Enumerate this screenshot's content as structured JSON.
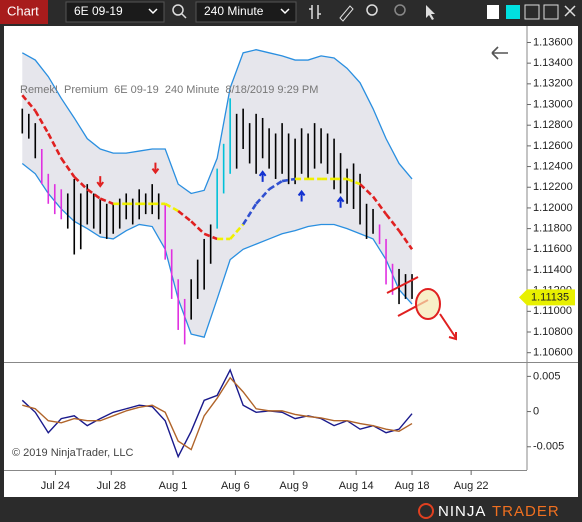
{
  "toolbar": {
    "title": "Chart",
    "instrument": "6E 09-19",
    "interval": "240 Minute"
  },
  "footer": {
    "copyright": "© 2019 NinjaTrader, LLC",
    "logo_1": "NINJA",
    "logo_2": "TRADER"
  },
  "chart_data": [
    {
      "type": "ohlc",
      "label": "Remek!  Premium  6E 09-19  240 Minute  8/18/2019 9:29 PM",
      "high": [
        1.1296,
        1.1291,
        1.1282,
        1.1257,
        1.1233,
        1.1223,
        1.1218,
        1.1214,
        1.1228,
        1.1214,
        1.1223,
        1.1214,
        1.1209,
        1.1204,
        1.1204,
        1.1209,
        1.1214,
        1.1209,
        1.1218,
        1.1214,
        1.1223,
        1.1214,
        1.1204,
        1.116,
        1.1131,
        1.1112,
        1.1131,
        1.115,
        1.117,
        1.1184,
        1.1238,
        1.1262,
        1.1306,
        1.1291,
        1.1296,
        1.1282,
        1.1291,
        1.1287,
        1.1277,
        1.1272,
        1.1282,
        1.1272,
        1.1267,
        1.1277,
        1.1272,
        1.1282,
        1.1277,
        1.1272,
        1.1267,
        1.1253,
        1.1238,
        1.1243,
        1.1233,
        1.1204,
        1.1199,
        1.1184,
        1.117,
        1.1146,
        1.1141,
        1.1136,
        1.1136
      ],
      "low": [
        1.1272,
        1.1267,
        1.1248,
        1.1223,
        1.1204,
        1.1194,
        1.1189,
        1.118,
        1.1155,
        1.116,
        1.1184,
        1.118,
        1.1175,
        1.117,
        1.1175,
        1.118,
        1.1189,
        1.1184,
        1.1189,
        1.1194,
        1.1194,
        1.1189,
        1.115,
        1.1112,
        1.1082,
        1.1068,
        1.1092,
        1.1112,
        1.1121,
        1.1146,
        1.118,
        1.1214,
        1.1233,
        1.1238,
        1.1257,
        1.1243,
        1.1233,
        1.1248,
        1.1238,
        1.1228,
        1.1233,
        1.1223,
        1.1223,
        1.1233,
        1.1228,
        1.1238,
        1.1243,
        1.1233,
        1.1218,
        1.1214,
        1.1204,
        1.1199,
        1.1184,
        1.117,
        1.1175,
        1.1165,
        1.1126,
        1.1116,
        1.1107,
        1.1112,
        1.1112
      ],
      "bar_colors": [
        "#000000",
        "#000000",
        "#000000",
        "#e030e0",
        "#e030e0",
        "#e030e0",
        "#e030e0",
        "#000000",
        "#000000",
        "#000000",
        "#000000",
        "#000000",
        "#000000",
        "#000000",
        "#000000",
        "#000000",
        "#000000",
        "#000000",
        "#000000",
        "#000000",
        "#000000",
        "#000000",
        "#e030e0",
        "#e030e0",
        "#e030e0",
        "#e030e0",
        "#000000",
        "#000000",
        "#000000",
        "#000000",
        "#00c0d8",
        "#00c0d8",
        "#00c0d8",
        "#000000",
        "#000000",
        "#000000",
        "#000000",
        "#000000",
        "#000000",
        "#000000",
        "#000000",
        "#000000",
        "#000000",
        "#000000",
        "#000000",
        "#000000",
        "#000000",
        "#000000",
        "#000000",
        "#000000",
        "#000000",
        "#000000",
        "#000000",
        "#000000",
        "#000000",
        "#e030e0",
        "#e030e0",
        "#e030e0",
        "#000000",
        "#000000",
        "#000000"
      ],
      "overlays": {
        "x": [
          0,
          2,
          4,
          6,
          8,
          10,
          12,
          14,
          16,
          18,
          20,
          22,
          24,
          26,
          28,
          30,
          32,
          34,
          36,
          38,
          40,
          42,
          44,
          46,
          48,
          50,
          52,
          54,
          56,
          58,
          60
        ],
        "upper": [
          1.135,
          1.1343,
          1.1327,
          1.1306,
          1.1287,
          1.1267,
          1.1257,
          1.1253,
          1.1253,
          1.1255,
          1.1257,
          1.1257,
          1.1223,
          1.1214,
          1.1217,
          1.1248,
          1.1316,
          1.135,
          1.1353,
          1.135,
          1.1347,
          1.1343,
          1.1343,
          1.1347,
          1.1345,
          1.1335,
          1.1321,
          1.1296,
          1.1267,
          1.1243,
          1.1228
        ],
        "lower": [
          1.1243,
          1.1233,
          1.1214,
          1.1199,
          1.1187,
          1.118,
          1.1172,
          1.117,
          1.1178,
          1.1184,
          1.1182,
          1.116,
          1.1112,
          1.1078,
          1.1075,
          1.1112,
          1.115,
          1.116,
          1.1165,
          1.117,
          1.1175,
          1.1178,
          1.1182,
          1.1184,
          1.1184,
          1.118,
          1.1175,
          1.117,
          1.115,
          1.1121,
          1.1107
        ],
        "band_color": "#2a8fe0",
        "band_fill": "#e6e6ec",
        "trend": [
          1.1309,
          1.1294,
          1.1272,
          1.1248,
          1.123,
          1.1218,
          1.1209,
          1.1204,
          1.1204,
          1.1204,
          1.1204,
          1.1204,
          1.1197,
          1.1187,
          1.1175,
          1.117,
          1.117,
          1.1184,
          1.1204,
          1.1218,
          1.1226,
          1.1228,
          1.1228,
          1.1228,
          1.1228,
          1.1228,
          1.1223,
          1.1211,
          1.1194,
          1.1178,
          1.116
        ],
        "trend_colors": [
          "#e02020",
          "#e02020",
          "#e02020",
          "#e02020",
          "#e02020",
          "#e02020",
          "#e02020",
          "#f0f000",
          "#f0f000",
          "#f0f000",
          "#f0f000",
          "#f0f000",
          "#e02020",
          "#e02020",
          "#e02020",
          "#f0f000",
          "#f0f000",
          "#3050d0",
          "#3050d0",
          "#3050d0",
          "#3050d0",
          "#f0f000",
          "#f0f000",
          "#f0f000",
          "#f0f000",
          "#f0f000",
          "#e02020",
          "#e02020",
          "#e02020",
          "#e02020",
          "#e02020"
        ]
      },
      "signals_down": {
        "x": [
          12,
          20.5
        ],
        "values": [
          1.1225,
          1.1238
        ],
        "color": "#e02020"
      },
      "signals_up": {
        "x": [
          37,
          43,
          49
        ],
        "values": [
          1.1231,
          1.1212,
          1.1206
        ],
        "color": "#1030d0"
      },
      "last_price": 1.11135,
      "xlim": [
        -2.2,
        77.7
      ],
      "ylim": [
        1.1051,
        1.1374
      ],
      "yticks": [
        {
          "value": 1.106,
          "label": "1.10600"
        },
        {
          "value": 1.108,
          "label": "1.10800"
        },
        {
          "value": 1.11,
          "label": "1.11000"
        },
        {
          "value": 1.112,
          "label": "1.11200"
        },
        {
          "value": 1.114,
          "label": "1.11400"
        },
        {
          "value": 1.116,
          "label": "1.11600"
        },
        {
          "value": 1.118,
          "label": "1.11800"
        },
        {
          "value": 1.12,
          "label": "1.12000"
        },
        {
          "value": 1.122,
          "label": "1.12200"
        },
        {
          "value": 1.124,
          "label": "1.12400"
        },
        {
          "value": 1.126,
          "label": "1.12600"
        },
        {
          "value": 1.128,
          "label": "1.12800"
        },
        {
          "value": 1.13,
          "label": "1.13000"
        },
        {
          "value": 1.132,
          "label": "1.13200"
        },
        {
          "value": 1.134,
          "label": "1.13400"
        },
        {
          "value": 1.136,
          "label": "1.13600"
        }
      ]
    },
    {
      "type": "line",
      "x": [
        0,
        2,
        4,
        6,
        8,
        10,
        12,
        14,
        16,
        18,
        20,
        22,
        24,
        26,
        28,
        30,
        32,
        34,
        36,
        38,
        40,
        42,
        44,
        46,
        48,
        50,
        52,
        54,
        56,
        58,
        60
      ],
      "series": [
        {
          "color": "#1a1a8c",
          "values": [
            0.0016,
            -0.0001,
            -0.003,
            -0.001,
            -0.0006,
            -0.002,
            -0.001,
            -0.0001,
            0.0004,
            0.0009,
            0.0007,
            -0.0013,
            -0.0064,
            -0.0028,
            0.0016,
            0.0023,
            0.0059,
            0.0009,
            -0.0001,
            0.0001,
            -0.0001,
            -0.001,
            -0.0006,
            -0.001,
            -0.002,
            -0.0013,
            -0.0025,
            -0.002,
            -0.003,
            -0.0025,
            -0.0003
          ]
        },
        {
          "color": "#b0642a",
          "values": [
            0.0009,
            0.0004,
            -0.0013,
            -0.0016,
            -0.001,
            -0.0013,
            -0.0013,
            -0.0006,
            0.0001,
            0.0006,
            0.0009,
            -0.0001,
            -0.0042,
            -0.0054,
            -0.0006,
            0.0019,
            0.0048,
            0.0028,
            0.0004,
            0.0001,
            0.0001,
            -0.0004,
            -0.0007,
            -0.0009,
            -0.0013,
            -0.0013,
            -0.0017,
            -0.002,
            -0.0025,
            -0.0028,
            -0.0017
          ]
        }
      ],
      "xlim": [
        -2.2,
        77.7
      ],
      "ylim": [
        -0.0083,
        0.0069
      ],
      "yticks": [
        -0.005,
        0,
        0.005
      ],
      "xticks": [
        {
          "value": 5.1,
          "label": "Jul 24"
        },
        {
          "value": 13.7,
          "label": "Jul 28"
        },
        {
          "value": 23.2,
          "label": "Aug 1"
        },
        {
          "value": 32.8,
          "label": "Aug 6"
        },
        {
          "value": 41.8,
          "label": "Aug 9"
        },
        {
          "value": 51.4,
          "label": "Aug 14"
        },
        {
          "value": 60,
          "label": "Aug 18"
        },
        {
          "value": 69.1,
          "label": "Aug 22"
        }
      ]
    }
  ]
}
